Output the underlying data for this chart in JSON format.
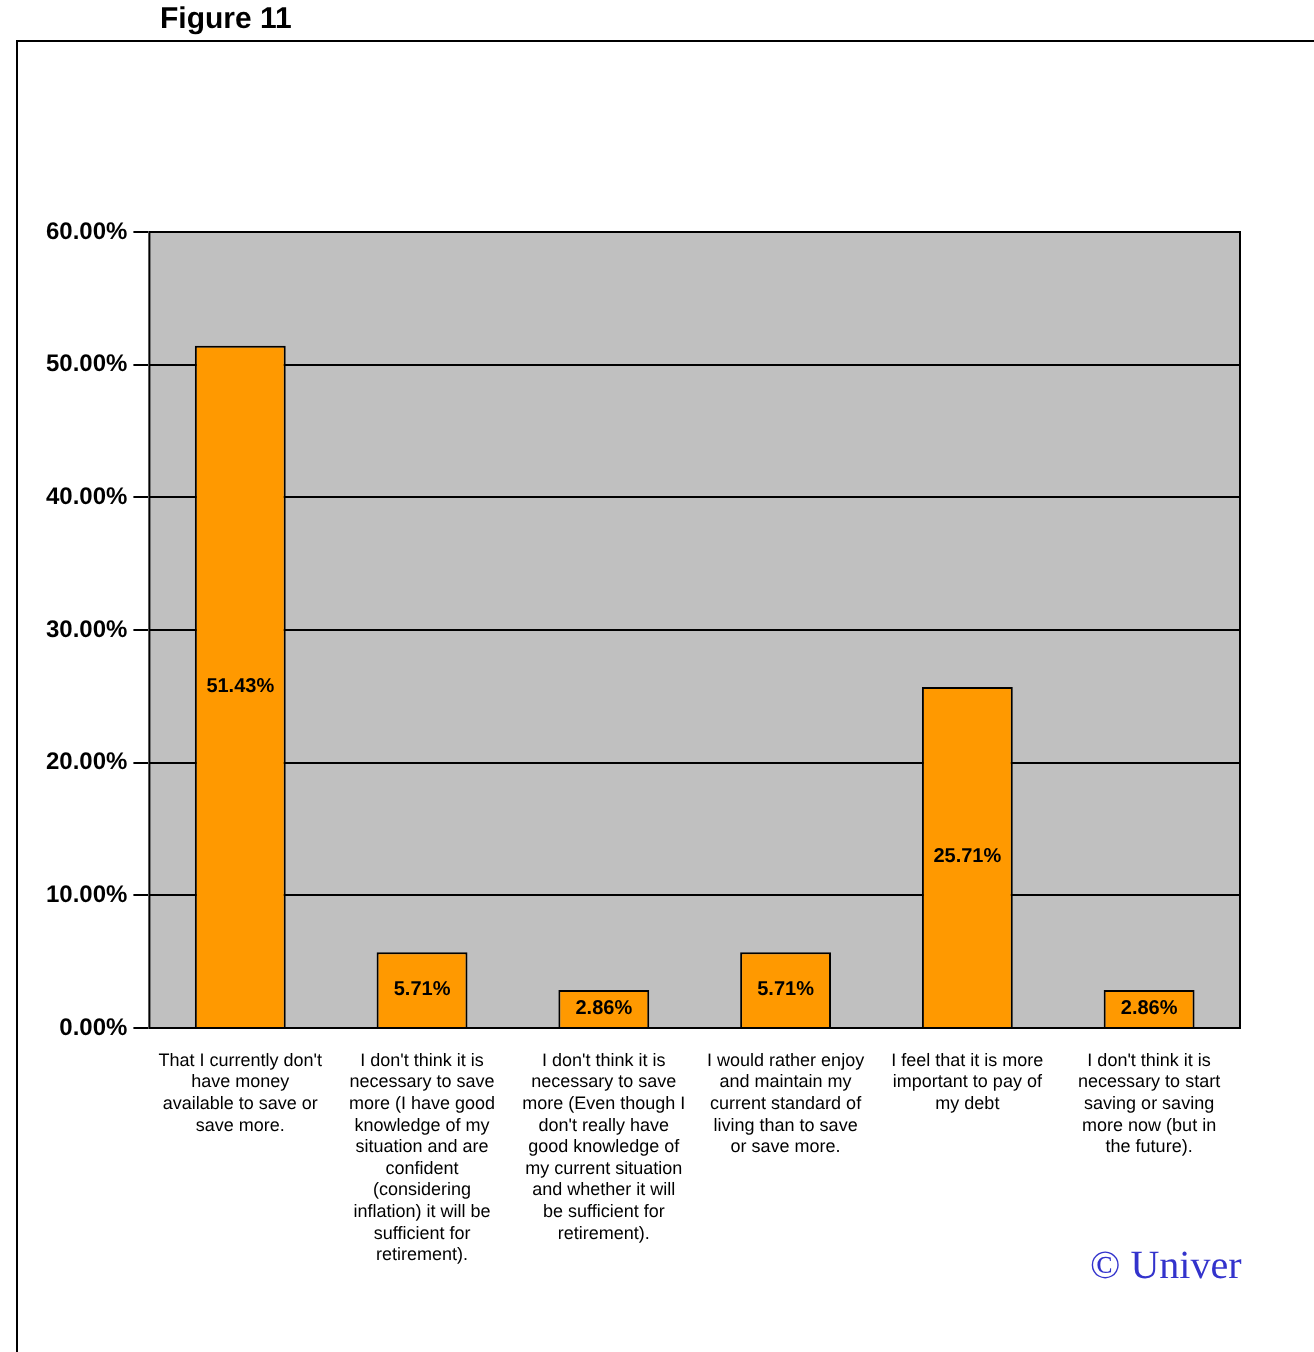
{
  "chart_data": {
    "type": "bar",
    "title": "Figure 11",
    "categories": [
      "That I currently don't have money available to save or save more.",
      "I don't think it is necessary to save more (I have good knowledge of my situation and are confident (considering inflation) it will be sufficient for retirement).",
      "I don't think it is necessary to save more (Even though I don't really have good knowledge of my current situation and whether it will be sufficient for retirement).",
      "I would rather enjoy and maintain my current standard of living than to save or save more.",
      "I feel that it is more important to pay of my debt",
      "I don't think it is necessary to start saving or saving more now (but in the future)."
    ],
    "values": [
      51.43,
      5.71,
      2.86,
      5.71,
      25.71,
      2.86
    ],
    "value_labels": [
      "51.43%",
      "5.71%",
      "2.86%",
      "5.71%",
      "25.71%",
      "2.86%"
    ],
    "color": "#ff9900",
    "ylim": [
      0,
      60
    ],
    "yticks": [
      {
        "value": 0,
        "label": "0.00%"
      },
      {
        "value": 10,
        "label": "10.00%"
      },
      {
        "value": 20,
        "label": "20.00%"
      },
      {
        "value": 30,
        "label": "30.00%"
      },
      {
        "value": 40,
        "label": "40.00%"
      },
      {
        "value": 50,
        "label": "50.00%"
      },
      {
        "value": 60,
        "label": "60.00%"
      }
    ],
    "grid": "y",
    "legend": false,
    "annotations": [
      "© Univer"
    ]
  }
}
